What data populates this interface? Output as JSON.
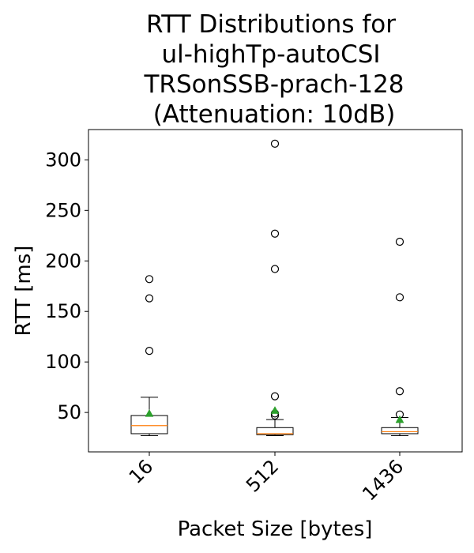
{
  "chart_data": {
    "type": "boxplot",
    "title_lines": [
      "RTT Distributions for",
      "ul-highTp-autoCSI",
      "TRSonSSB-prach-128",
      "(Attenuation: 10dB)"
    ],
    "xlabel": "Packet Size [bytes]",
    "ylabel": "RTT [ms]",
    "categories": [
      "16",
      "512",
      "1436"
    ],
    "ylim": [
      11,
      330
    ],
    "yticks": [
      50,
      100,
      150,
      200,
      250,
      300
    ],
    "grid": false,
    "colors": {
      "box": "#000000",
      "median": "#ff7f0e",
      "mean_marker": "#2ca02c",
      "outlier": "#000000"
    },
    "boxes": [
      {
        "category": "16",
        "whisker_low": 27,
        "q1": 29,
        "median": 37,
        "q3": 47,
        "whisker_high": 65,
        "mean": 49,
        "outliers": [
          111,
          163,
          182
        ]
      },
      {
        "category": "512",
        "whisker_low": 27,
        "q1": 28,
        "median": 29,
        "q3": 35,
        "whisker_high": 43,
        "mean": 52,
        "outliers": [
          47,
          49,
          66,
          192,
          227,
          316
        ]
      },
      {
        "category": "1436",
        "whisker_low": 27,
        "q1": 29,
        "median": 31,
        "q3": 35,
        "whisker_high": 45,
        "mean": 43,
        "outliers": [
          48,
          71,
          164,
          219
        ]
      }
    ]
  }
}
